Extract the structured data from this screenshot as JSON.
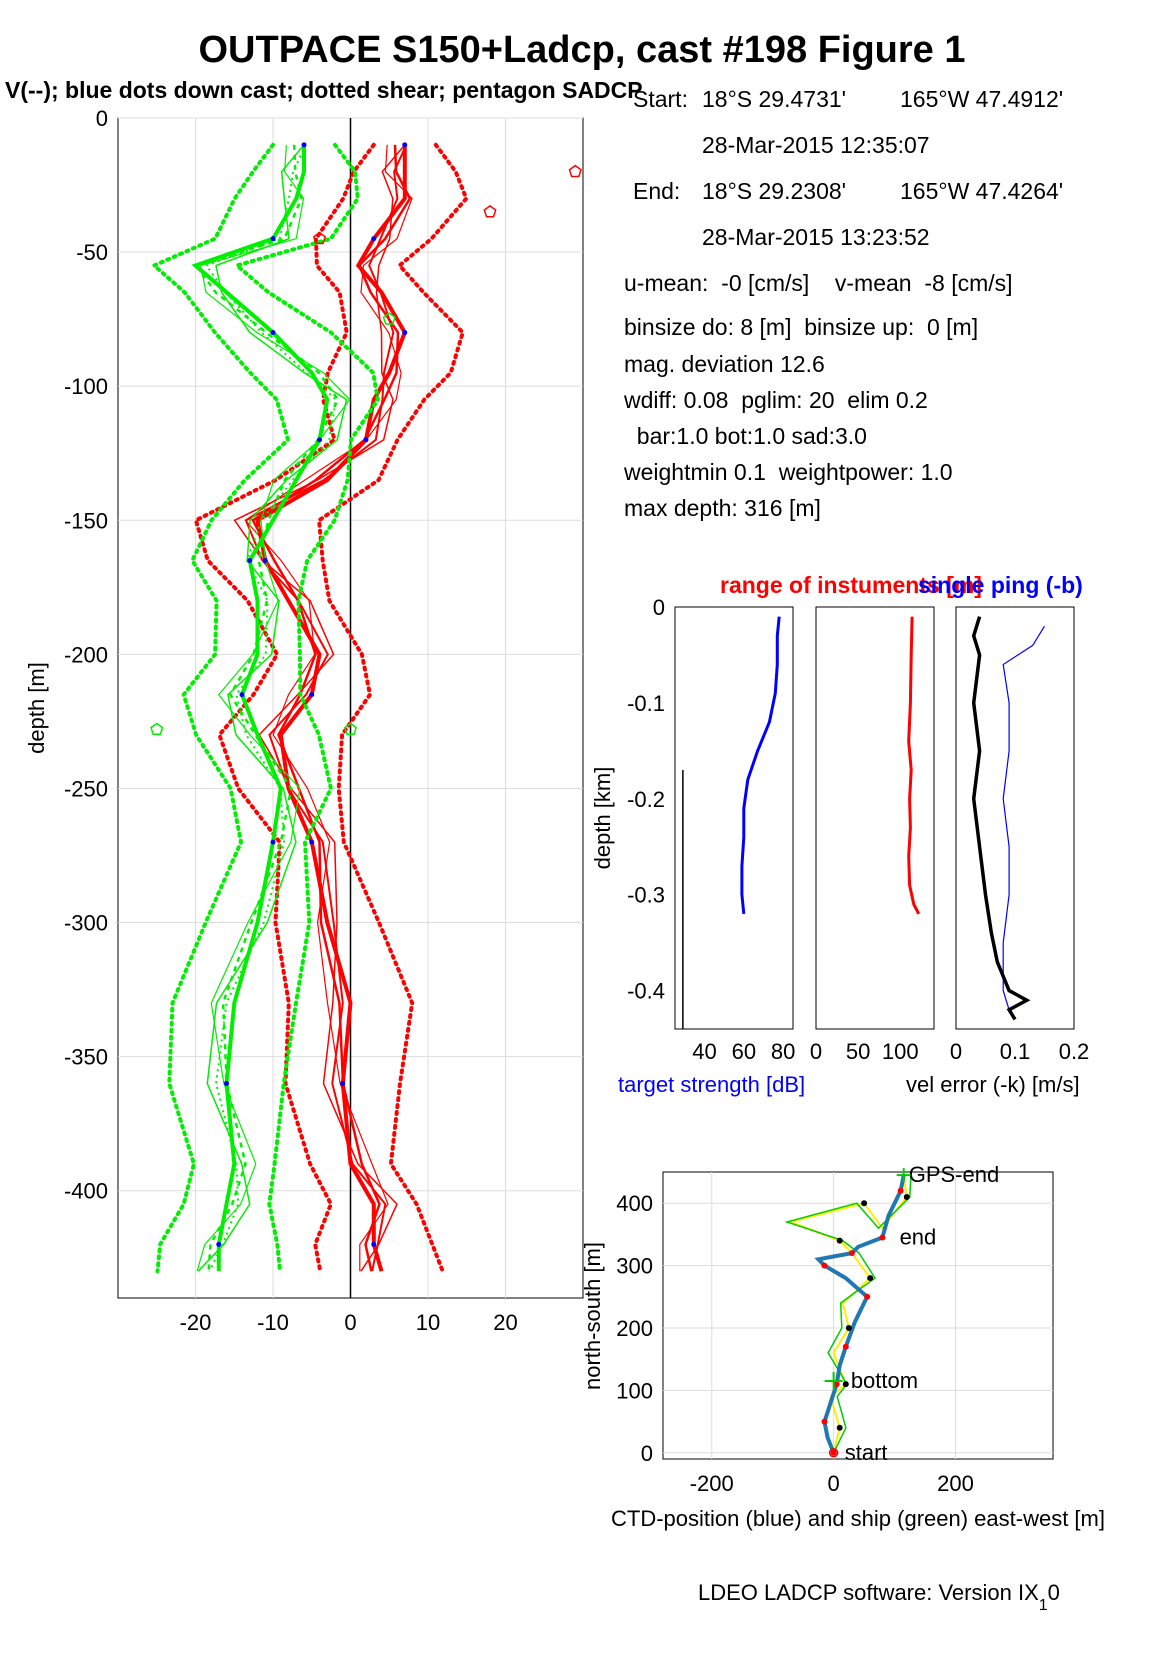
{
  "figure": {
    "title": "OUTPACE S150+Ladcp, cast #198  Figure 1",
    "subtitle": "V(--); blue dots down cast; dotted shear; pentagon SADCP",
    "footer": "LDEO LADCP software: Version IX",
    "footer_sub": "1",
    "footer_tail": "0"
  },
  "info": {
    "start_label": "Start:",
    "start_lat": "18°S 29.4731'",
    "start_lon": "165°W 47.4912'",
    "start_time": "28-Mar-2015 12:35:07",
    "end_label": "End:",
    "end_lat": "18°S 29.2308'",
    "end_lon": "165°W 47.4264'",
    "end_time": "28-Mar-2015 13:23:52",
    "means": "u-mean:  -0 [cm/s]    v-mean  -8 [cm/s]",
    "binsize": "binsize do: 8 [m]  binsize up:  0 [m]",
    "magdev": "mag. deviation 12.6",
    "wdiff": "wdiff: 0.08  pglim: 20  elim 0.2",
    "weights": "  bar:1.0 bot:1.0 sad:3.0",
    "weightmin": "weightmin 0.1  weightpower: 1.0",
    "maxdepth": "max depth: 316 [m]"
  },
  "colors": {
    "u": "#ff0000",
    "v": "#00ee00",
    "dots": "#0000ff",
    "target": "#0000ff",
    "range": "#ff0000",
    "velerr": "#000000",
    "ctd": "#1f77b4",
    "ship": "#00cc00",
    "ship_yellow": "#ffee00"
  },
  "chart_data": [
    {
      "type": "line",
      "name": "velocity profiles",
      "xlabel": "",
      "ylabel": "depth [m]",
      "xlim": [
        -30,
        30
      ],
      "ylim": [
        -440,
        0
      ],
      "xticks": [
        -20,
        -10,
        0,
        10,
        20
      ],
      "yticks": [
        -400,
        -350,
        -300,
        -250,
        -200,
        -150,
        -100,
        -50,
        0
      ],
      "grid": true,
      "depth": [
        -10,
        -20,
        -30,
        -45,
        -55,
        -65,
        -80,
        -95,
        -105,
        -120,
        -135,
        -150,
        -165,
        -180,
        -200,
        -215,
        -230,
        -250,
        -270,
        -300,
        -330,
        -360,
        -390,
        -405,
        -420,
        -430
      ],
      "series": [
        {
          "values": [
            7,
            7,
            7,
            3,
            1,
            4,
            7,
            5,
            3,
            2,
            -3,
            -12,
            -11,
            -8,
            -4,
            -5,
            -9,
            -8,
            -5,
            -3,
            0,
            -1,
            0,
            3,
            3,
            4
          ]
        },
        {
          "values": [
            -6,
            -6,
            -7,
            -10,
            -20,
            -16,
            -10,
            -5,
            -3,
            -4,
            -7,
            -10,
            -13,
            -12,
            -12,
            -14,
            -12,
            -9,
            -10,
            -12,
            -15,
            -16,
            -15,
            -16,
            -17,
            -17
          ]
        }
      ],
      "sadcp_pentagons": [
        {
          "x": 29,
          "y": -20
        },
        {
          "x": 18,
          "y": -35
        },
        {
          "x": -4,
          "y": -45
        },
        {
          "x": 5,
          "y": -75
        },
        {
          "x": -25,
          "y": -228
        },
        {
          "x": 0,
          "y": -228
        }
      ]
    },
    {
      "type": "line",
      "name": "target strength",
      "xlabel": "target strength [dB]",
      "ylabel": "depth [km]",
      "xlim": [
        25,
        85
      ],
      "ylim": [
        -0.44,
        0
      ],
      "xticks": [
        40,
        60,
        80
      ],
      "yticks": [
        -0.4,
        -0.3,
        -0.2,
        -0.1,
        0
      ],
      "depth": [
        -0.01,
        -0.03,
        -0.06,
        -0.09,
        -0.12,
        -0.15,
        -0.18,
        -0.21,
        -0.24,
        -0.27,
        -0.3,
        -0.32
      ],
      "values": [
        78,
        77,
        77,
        76,
        73,
        67,
        62,
        60,
        60,
        59,
        59,
        60
      ]
    },
    {
      "type": "line",
      "name": "range of instruments",
      "title": "range of instuments [m]",
      "xlim": [
        0,
        140
      ],
      "ylim": [
        -0.44,
        0
      ],
      "xticks": [
        0,
        50,
        100
      ],
      "depth": [
        -0.01,
        -0.05,
        -0.1,
        -0.14,
        -0.17,
        -0.2,
        -0.23,
        -0.26,
        -0.29,
        -0.31,
        -0.32
      ],
      "values": [
        114,
        113,
        112,
        110,
        113,
        111,
        112,
        110,
        111,
        116,
        122
      ]
    },
    {
      "type": "line",
      "name": "velocity error",
      "title": "single ping (-b)",
      "xlabel": "vel error (-k) [m/s]",
      "xlim": [
        0,
        0.2
      ],
      "ylim": [
        -0.44,
        0
      ],
      "xticks": [
        0,
        0.1,
        0.2
      ],
      "series": [
        {
          "name": "vel error (-k)",
          "depth": [
            -0.01,
            -0.03,
            -0.05,
            -0.1,
            -0.15,
            -0.2,
            -0.25,
            -0.3,
            -0.34,
            -0.37,
            -0.4,
            -0.41,
            -0.42,
            -0.43
          ],
          "values": [
            0.04,
            0.03,
            0.04,
            0.03,
            0.04,
            0.03,
            0.04,
            0.05,
            0.06,
            0.07,
            0.09,
            0.12,
            0.09,
            0.1
          ]
        },
        {
          "name": "single ping (-b)",
          "depth": [
            -0.02,
            -0.04,
            -0.06,
            -0.1,
            -0.15,
            -0.2,
            -0.25,
            -0.3,
            -0.35,
            -0.4,
            -0.42
          ],
          "values": [
            0.15,
            0.13,
            0.08,
            0.09,
            0.09,
            0.08,
            0.09,
            0.09,
            0.08,
            0.08,
            0.09
          ]
        }
      ]
    },
    {
      "type": "line",
      "name": "positions",
      "xlabel": "CTD-position (blue) and ship (green) east-west [m]",
      "ylabel": "north-south [m]",
      "xlim": [
        -280,
        360
      ],
      "ylim": [
        -10,
        450
      ],
      "xticks": [
        -200,
        0,
        200
      ],
      "yticks": [
        0,
        100,
        200,
        300,
        400
      ],
      "grid": true,
      "ctd": {
        "x": [
          0,
          -10,
          -15,
          -5,
          5,
          10,
          20,
          35,
          55,
          20,
          -15,
          -25,
          30,
          40,
          80,
          90,
          110,
          115
        ],
        "y": [
          0,
          25,
          50,
          80,
          110,
          140,
          170,
          210,
          250,
          280,
          300,
          310,
          320,
          330,
          345,
          380,
          420,
          445
        ]
      },
      "ship": {
        "x": [
          0,
          10,
          -5,
          20,
          0,
          25,
          15,
          60,
          30,
          10,
          -70,
          50,
          80,
          120,
          115
        ],
        "y": [
          0,
          40,
          90,
          110,
          160,
          200,
          240,
          280,
          320,
          340,
          370,
          400,
          360,
          410,
          445
        ]
      },
      "labels": [
        {
          "text": "GPS-end",
          "x": 115,
          "y": 445
        },
        {
          "text": "end",
          "x": 100,
          "y": 345
        },
        {
          "text": "bottom",
          "x": 20,
          "y": 115
        },
        {
          "text": "start",
          "x": 10,
          "y": 0
        }
      ]
    }
  ]
}
